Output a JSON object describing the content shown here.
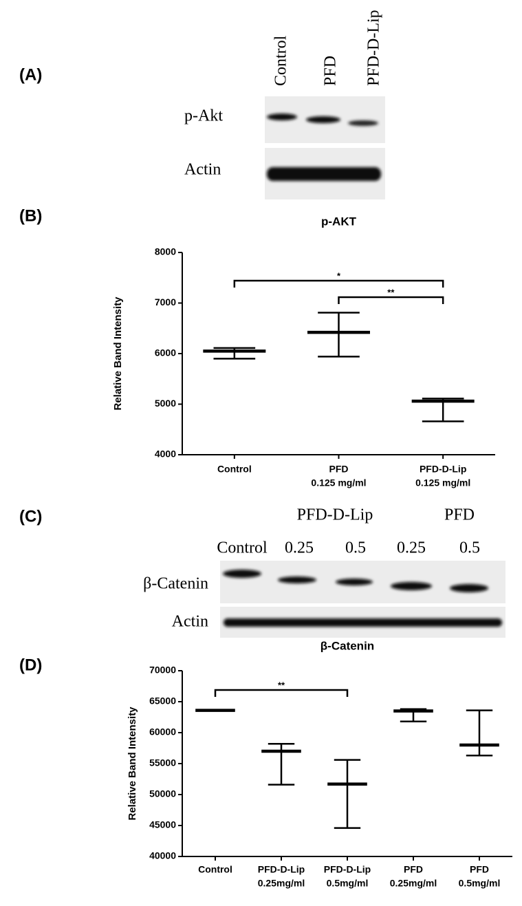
{
  "panel_labels": [
    "(A)",
    "(B)",
    "(C)",
    "(D)"
  ],
  "blot_a": {
    "lanes": [
      "Control",
      "PFD",
      "PFD-D-Lip"
    ],
    "rows": [
      "p-Akt",
      "Actin"
    ]
  },
  "blot_c": {
    "groups": [
      "PFD-D-Lip",
      "PFD"
    ],
    "lanes": [
      "Control",
      "0.25",
      "0.5",
      "0.25",
      "0.5"
    ],
    "rows": [
      "β-Catenin",
      "Actin"
    ]
  },
  "chart_data": [
    {
      "type": "range",
      "title": "p-AKT",
      "ylabel": "Relative Band Intensity",
      "categories": [
        [
          "Control"
        ],
        [
          "PFD",
          "0.125 mg/ml"
        ],
        [
          "PFD-D-Lip",
          "0.125 mg/ml"
        ]
      ],
      "values": [
        6050,
        6420,
        5060
      ],
      "low": [
        5900,
        5940,
        4660
      ],
      "high": [
        6110,
        6810,
        5110
      ],
      "ylim": [
        4000,
        8000
      ],
      "yticks": [
        4000,
        5000,
        6000,
        7000,
        8000
      ],
      "color": "#000000",
      "annotations": [
        {
          "text": "*",
          "from": 0,
          "to": 2
        },
        {
          "text": "**",
          "from": 1,
          "to": 2
        }
      ]
    },
    {
      "type": "range",
      "title": "β-Catenin",
      "ylabel": "Relative Band Intensity",
      "categories": [
        [
          "Control"
        ],
        [
          "PFD-D-Lip",
          "0.25mg/ml"
        ],
        [
          "PFD-D-Lip",
          "0.5mg/ml"
        ],
        [
          "PFD",
          "0.25mg/ml"
        ],
        [
          "PFD",
          "0.5mg/ml"
        ]
      ],
      "values": [
        63600,
        57000,
        51700,
        63500,
        58000
      ],
      "low": [
        63600,
        51600,
        44600,
        61800,
        56300
      ],
      "high": [
        63600,
        58200,
        55600,
        63800,
        63600
      ],
      "ylim": [
        40000,
        70000
      ],
      "yticks": [
        40000,
        45000,
        50000,
        55000,
        60000,
        65000,
        70000
      ],
      "color": "#000000",
      "annotations": [
        {
          "text": "**",
          "from": 0,
          "to": 2
        }
      ]
    }
  ]
}
